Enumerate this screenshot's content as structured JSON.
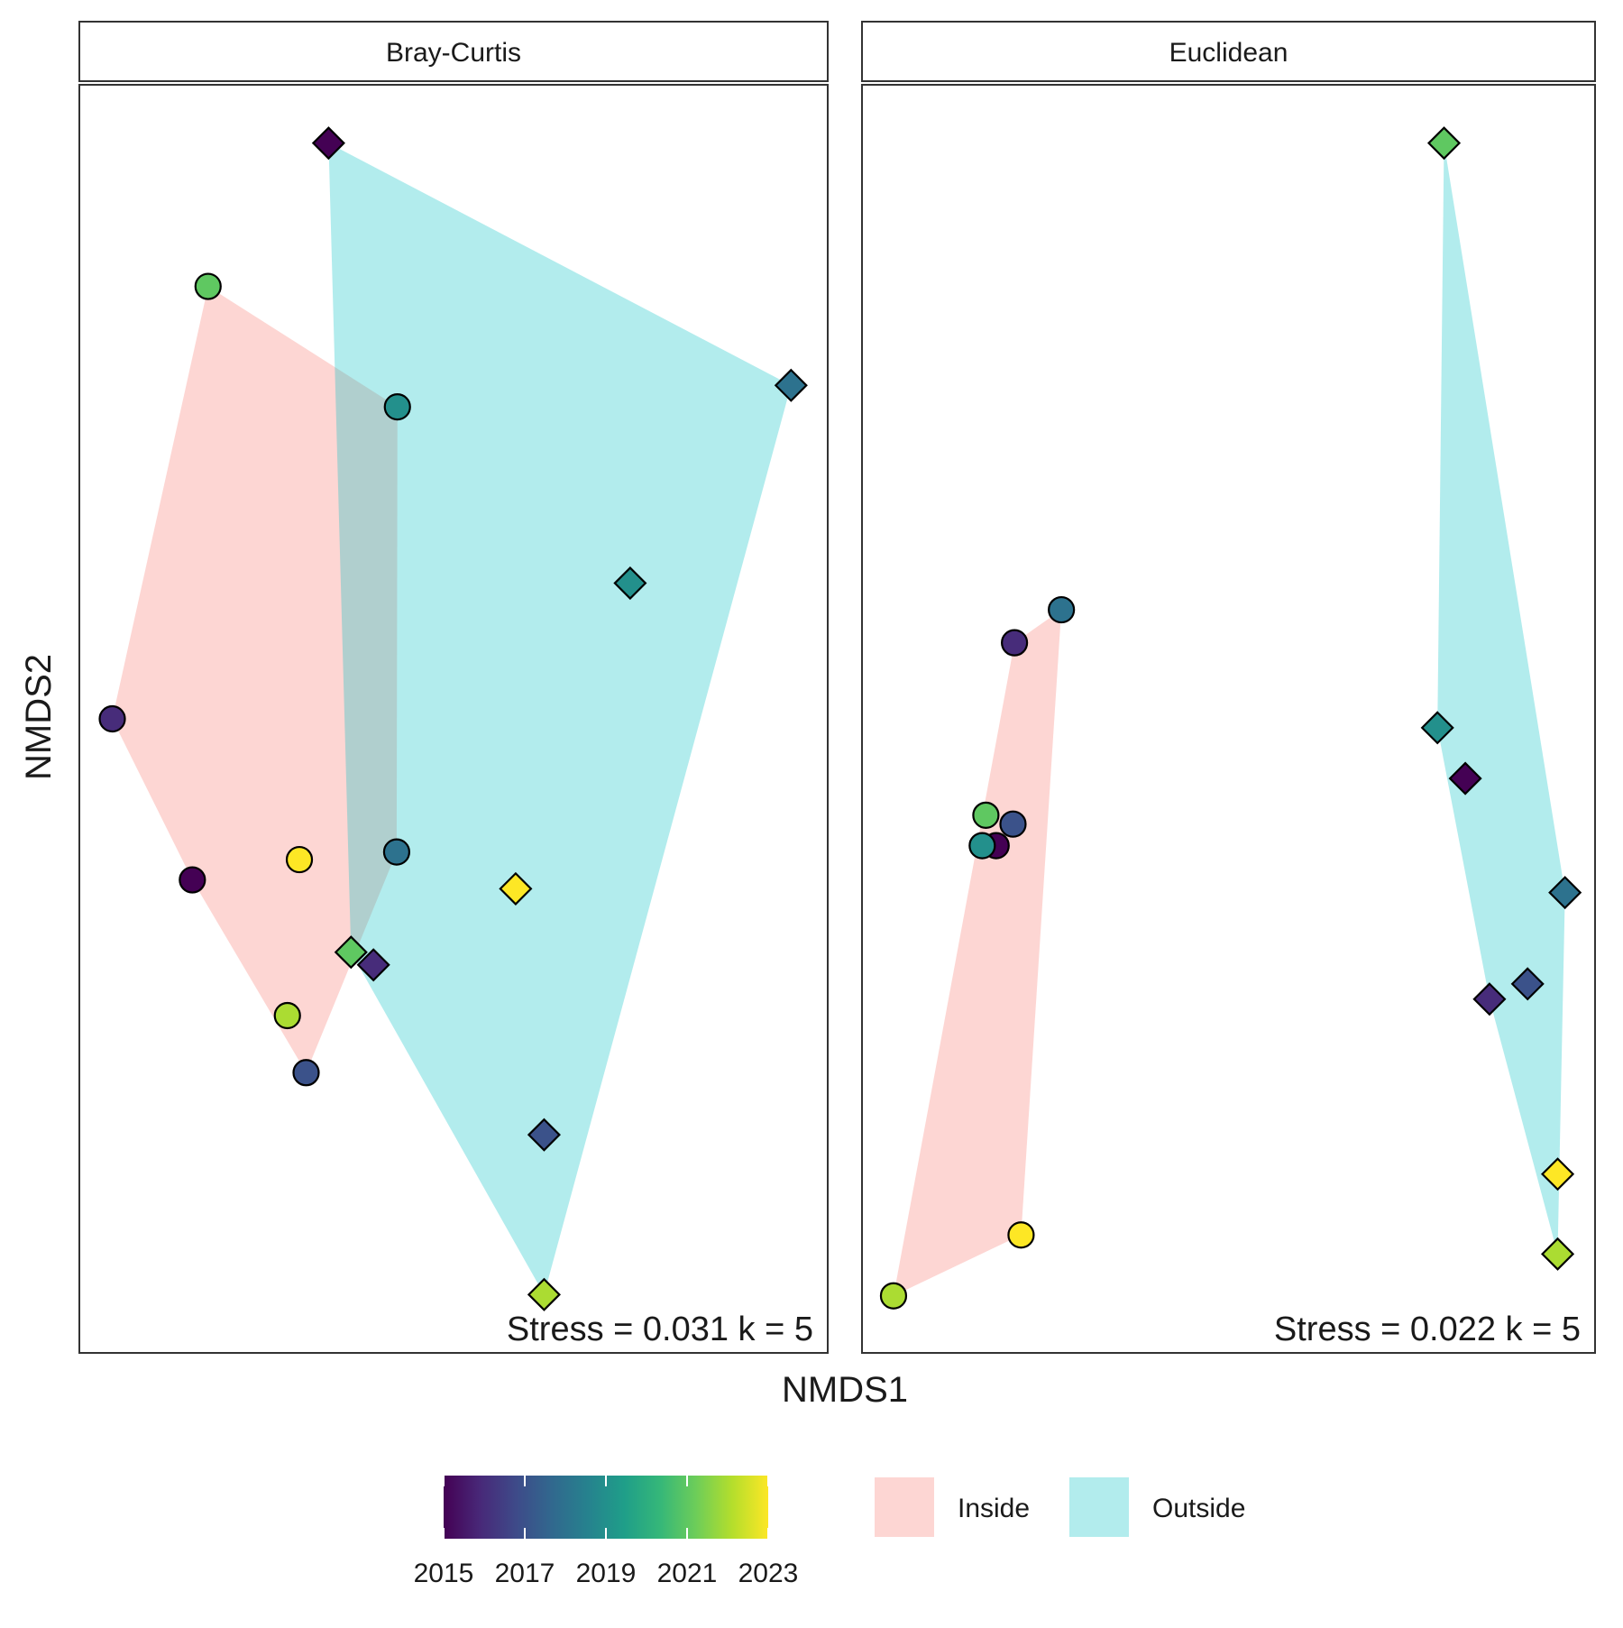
{
  "colors": {
    "group_fill": {
      "Inside": "#F8766D",
      "Outside": "#00BFC4"
    },
    "viridis": [
      "#440154",
      "#482878",
      "#3E4A89",
      "#31688E",
      "#26828E",
      "#1F9E89",
      "#35B779",
      "#6DCD59",
      "#B4DE2C",
      "#FDE725"
    ]
  },
  "chart_data": [
    {
      "type": "scatter",
      "facet": "Bray-Curtis",
      "stress_label": "Stress = 0.031 k = 5",
      "xlim": [
        0,
        100
      ],
      "ylim": [
        0,
        100
      ],
      "points": [
        {
          "year": 2015,
          "group": "Outside",
          "x": 33.3,
          "y": 95.4
        },
        {
          "year": 2021,
          "group": "Inside",
          "x": 17.2,
          "y": 84.1
        },
        {
          "year": 2018,
          "group": "Outside",
          "x": 95.1,
          "y": 76.3
        },
        {
          "year": 2019,
          "group": "Inside",
          "x": 42.5,
          "y": 74.6
        },
        {
          "year": 2019,
          "group": "Outside",
          "x": 73.6,
          "y": 60.7
        },
        {
          "year": 2016,
          "group": "Inside",
          "x": 4.4,
          "y": 50.0
        },
        {
          "year": 2015,
          "group": "Inside",
          "x": 15.1,
          "y": 37.3
        },
        {
          "year": 2023,
          "group": "Inside",
          "x": 29.4,
          "y": 38.9
        },
        {
          "year": 2018,
          "group": "Inside",
          "x": 42.4,
          "y": 39.5
        },
        {
          "year": 2023,
          "group": "Outside",
          "x": 58.3,
          "y": 36.6
        },
        {
          "year": 2021,
          "group": "Outside",
          "x": 36.3,
          "y": 31.6
        },
        {
          "year": 2016,
          "group": "Outside",
          "x": 39.3,
          "y": 30.6
        },
        {
          "year": 2022,
          "group": "Inside",
          "x": 27.8,
          "y": 26.6
        },
        {
          "year": 2017,
          "group": "Inside",
          "x": 30.3,
          "y": 22.1
        },
        {
          "year": 2017,
          "group": "Outside",
          "x": 62.1,
          "y": 17.2
        },
        {
          "year": 2022,
          "group": "Outside",
          "x": 62.1,
          "y": 4.6
        }
      ]
    },
    {
      "type": "scatter",
      "facet": "Euclidean",
      "stress_label": "Stress = 0.022 k = 5",
      "xlim": [
        0,
        100
      ],
      "ylim": [
        0,
        100
      ],
      "points": [
        {
          "year": 2021,
          "group": "Outside",
          "x": 79.4,
          "y": 95.4
        },
        {
          "year": 2018,
          "group": "Inside",
          "x": 27.2,
          "y": 58.6
        },
        {
          "year": 2016,
          "group": "Inside",
          "x": 20.8,
          "y": 56.0
        },
        {
          "year": 2019,
          "group": "Outside",
          "x": 78.5,
          "y": 49.3
        },
        {
          "year": 2015,
          "group": "Outside",
          "x": 82.3,
          "y": 45.3
        },
        {
          "year": 2021,
          "group": "Inside",
          "x": 16.9,
          "y": 42.4
        },
        {
          "year": 2017,
          "group": "Inside",
          "x": 20.6,
          "y": 41.7
        },
        {
          "year": 2015,
          "group": "Inside",
          "x": 18.3,
          "y": 40.0
        },
        {
          "year": 2019,
          "group": "Inside",
          "x": 16.4,
          "y": 40.0
        },
        {
          "year": 2018,
          "group": "Outside",
          "x": 95.9,
          "y": 36.3
        },
        {
          "year": 2017,
          "group": "Outside",
          "x": 90.8,
          "y": 29.1
        },
        {
          "year": 2016,
          "group": "Outside",
          "x": 85.6,
          "y": 27.9
        },
        {
          "year": 2023,
          "group": "Outside",
          "x": 94.9,
          "y": 14.1
        },
        {
          "year": 2023,
          "group": "Inside",
          "x": 21.7,
          "y": 9.3
        },
        {
          "year": 2022,
          "group": "Outside",
          "x": 94.9,
          "y": 7.8
        },
        {
          "year": 2022,
          "group": "Inside",
          "x": 4.3,
          "y": 4.5
        }
      ]
    }
  ],
  "axes": {
    "xlabel": "NMDS1",
    "ylabel": "NMDS2"
  },
  "legend": {
    "colorbar": {
      "min": 2015,
      "max": 2023,
      "ticks": [
        "2015",
        "2017",
        "2019",
        "2021",
        "2023"
      ]
    },
    "fill_keys": [
      {
        "label": "Inside",
        "group": "Inside"
      },
      {
        "label": "Outside",
        "group": "Outside"
      }
    ]
  }
}
